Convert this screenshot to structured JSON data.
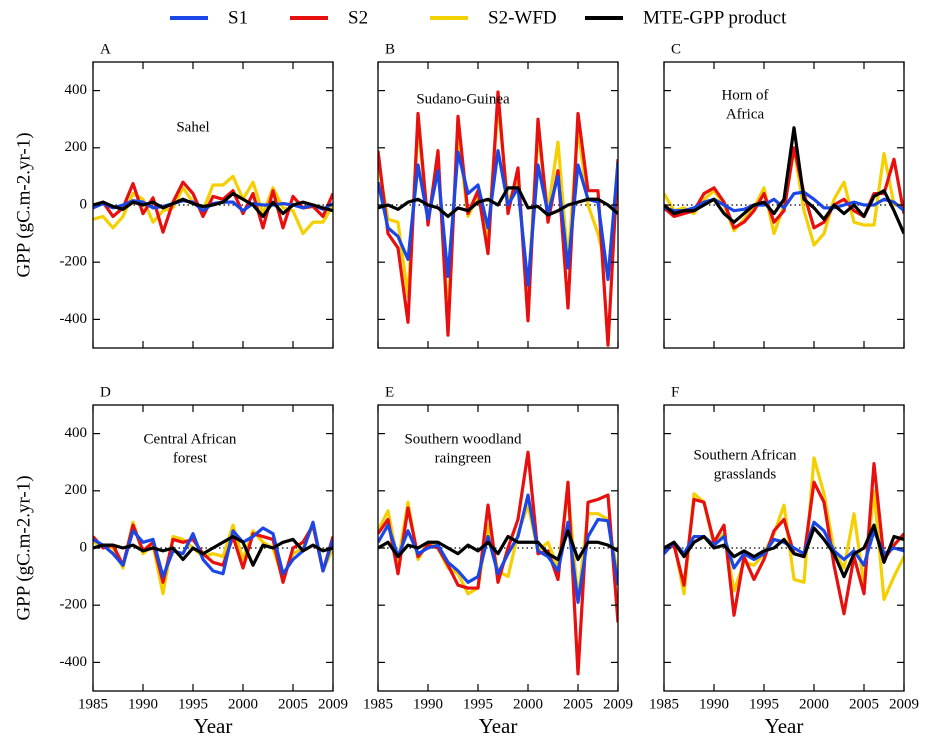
{
  "chart_data": [
    {
      "type": "line",
      "label": "A",
      "annotation": [
        "Sahel"
      ],
      "ylabel": "GPP (gC.m-2.yr-1)",
      "x": [
        1985,
        1986,
        1987,
        1988,
        1989,
        1990,
        1991,
        1992,
        1993,
        1994,
        1995,
        1996,
        1997,
        1998,
        1999,
        2000,
        2001,
        2002,
        2003,
        2004,
        2005,
        2006,
        2007,
        2008,
        2009
      ],
      "xlim": [
        1985,
        2009
      ],
      "xticks": [
        1985,
        1990,
        1995,
        2000,
        2005,
        2009
      ],
      "ylim": [
        -500,
        500
      ],
      "yticks": [
        -400,
        -200,
        0,
        200,
        400
      ],
      "hline": 0,
      "series": [
        {
          "name": "S1",
          "color": "#1a47e6",
          "values": [
            -10,
            5,
            -10,
            0,
            15,
            10,
            -10,
            -5,
            5,
            15,
            10,
            -20,
            5,
            10,
            10,
            -20,
            5,
            0,
            0,
            5,
            0,
            -10,
            0,
            -15,
            5
          ]
        },
        {
          "name": "S2",
          "color": "#e8100f",
          "values": [
            -10,
            10,
            -40,
            -10,
            75,
            -30,
            25,
            -95,
            10,
            80,
            40,
            -40,
            30,
            20,
            50,
            -30,
            40,
            -80,
            50,
            -80,
            30,
            -10,
            -5,
            -40,
            40
          ]
        },
        {
          "name": "S2-WFD",
          "color": "#f5d000",
          "values": [
            -50,
            -40,
            -80,
            -40,
            40,
            20,
            -60,
            -20,
            -10,
            60,
            10,
            -20,
            70,
            70,
            100,
            20,
            80,
            -30,
            60,
            -10,
            -20,
            -100,
            -60,
            -60,
            0
          ]
        },
        {
          "name": "MTE-GPP product",
          "color": "#000000",
          "values": [
            0,
            10,
            -5,
            -15,
            10,
            0,
            10,
            -10,
            5,
            20,
            5,
            -5,
            0,
            10,
            40,
            20,
            0,
            -40,
            10,
            -30,
            0,
            10,
            0,
            -10,
            -20
          ]
        }
      ]
    },
    {
      "type": "line",
      "label": "B",
      "annotation": [
        "Sudano-Guinea"
      ],
      "x": [
        1985,
        1986,
        1987,
        1988,
        1989,
        1990,
        1991,
        1992,
        1993,
        1994,
        1995,
        1996,
        1997,
        1998,
        1999,
        2000,
        2001,
        2002,
        2003,
        2004,
        2005,
        2006,
        2007,
        2008,
        2009
      ],
      "xlim": [
        1985,
        2009
      ],
      "xticks": [
        1985,
        1990,
        1995,
        2000,
        2005,
        2009
      ],
      "ylim": [
        -500,
        500
      ],
      "yticks": [
        -400,
        -200,
        0,
        200,
        400
      ],
      "hline": 0,
      "series": [
        {
          "name": "S1",
          "color": "#1a47e6",
          "values": [
            80,
            -80,
            -110,
            -190,
            140,
            -50,
            120,
            -250,
            185,
            40,
            70,
            -80,
            190,
            0,
            60,
            -280,
            140,
            -30,
            100,
            -220,
            140,
            20,
            10,
            -260,
            150
          ]
        },
        {
          "name": "S2",
          "color": "#e8100f",
          "values": [
            190,
            -100,
            -150,
            -410,
            320,
            -70,
            190,
            -455,
            310,
            -30,
            50,
            -170,
            395,
            -30,
            130,
            -405,
            300,
            -60,
            120,
            -360,
            320,
            50,
            50,
            -490,
            160
          ]
        },
        {
          "name": "S2-WFD",
          "color": "#f5d000",
          "values": [
            150,
            -50,
            -60,
            -320,
            280,
            -60,
            150,
            -390,
            250,
            -40,
            30,
            -110,
            350,
            10,
            80,
            -300,
            250,
            -20,
            220,
            -200,
            270,
            0,
            -100,
            -250,
            150
          ]
        },
        {
          "name": "MTE-GPP product",
          "color": "#000000",
          "values": [
            -10,
            0,
            -15,
            10,
            20,
            0,
            -10,
            -40,
            -10,
            -20,
            10,
            20,
            0,
            60,
            60,
            -10,
            -5,
            -35,
            -20,
            0,
            10,
            20,
            20,
            0,
            -30
          ]
        }
      ]
    },
    {
      "type": "line",
      "label": "C",
      "annotation": [
        "Horn of",
        "Africa"
      ],
      "x": [
        1985,
        1986,
        1987,
        1988,
        1989,
        1990,
        1991,
        1992,
        1993,
        1994,
        1995,
        1996,
        1997,
        1998,
        1999,
        2000,
        2001,
        2002,
        2003,
        2004,
        2005,
        2006,
        2007,
        2008,
        2009
      ],
      "xlim": [
        1985,
        2009
      ],
      "xticks": [
        1985,
        1990,
        1995,
        2000,
        2005,
        2009
      ],
      "ylim": [
        -500,
        500
      ],
      "yticks": [
        -400,
        -200,
        0,
        200,
        400
      ],
      "hline": 0,
      "series": [
        {
          "name": "S1",
          "color": "#1a47e6",
          "values": [
            -10,
            -20,
            -20,
            -10,
            10,
            20,
            0,
            -20,
            -15,
            0,
            0,
            20,
            -10,
            40,
            45,
            20,
            -10,
            -10,
            0,
            10,
            0,
            0,
            20,
            10,
            -20
          ]
        },
        {
          "name": "S2",
          "color": "#e8100f",
          "values": [
            -10,
            -40,
            -30,
            -20,
            40,
            60,
            10,
            -80,
            -60,
            -20,
            40,
            -60,
            -20,
            200,
            40,
            -80,
            -60,
            0,
            20,
            -20,
            -40,
            40,
            40,
            160,
            -30
          ]
        },
        {
          "name": "S2-WFD",
          "color": "#f5d000",
          "values": [
            40,
            -20,
            -10,
            -30,
            20,
            50,
            0,
            -90,
            -50,
            -10,
            60,
            -100,
            0,
            200,
            -20,
            -140,
            -100,
            20,
            80,
            -60,
            -70,
            -70,
            180,
            0,
            0
          ]
        },
        {
          "name": "MTE-GPP product",
          "color": "#000000",
          "values": [
            0,
            -30,
            -20,
            -20,
            0,
            20,
            -30,
            -60,
            -30,
            0,
            10,
            -30,
            20,
            270,
            20,
            -10,
            -50,
            0,
            -30,
            0,
            -40,
            30,
            50,
            -20,
            -100
          ]
        }
      ]
    },
    {
      "type": "line",
      "label": "D",
      "annotation": [
        "Central African",
        "forest"
      ],
      "ylabel": "GPP (gC.m-2.yr-1)",
      "xlabel": "Year",
      "x": [
        1985,
        1986,
        1987,
        1988,
        1989,
        1990,
        1991,
        1992,
        1993,
        1994,
        1995,
        1996,
        1997,
        1998,
        1999,
        2000,
        2001,
        2002,
        2003,
        2004,
        2005,
        2006,
        2007,
        2008,
        2009
      ],
      "xlim": [
        1985,
        2009
      ],
      "xticks": [
        1985,
        1990,
        1995,
        2000,
        2005,
        2009
      ],
      "ylim": [
        -500,
        500
      ],
      "yticks": [
        -400,
        -200,
        0,
        200,
        400
      ],
      "hline": 0,
      "series": [
        {
          "name": "S1",
          "color": "#1a47e6",
          "values": [
            30,
            10,
            -20,
            -60,
            60,
            20,
            30,
            -100,
            -10,
            -20,
            50,
            -40,
            -80,
            -90,
            60,
            20,
            40,
            70,
            50,
            -90,
            -40,
            -10,
            90,
            -80,
            30
          ]
        },
        {
          "name": "S2",
          "color": "#e8100f",
          "values": [
            40,
            0,
            10,
            -60,
            80,
            -10,
            20,
            -120,
            30,
            20,
            30,
            -20,
            -50,
            -60,
            40,
            -70,
            50,
            40,
            30,
            -120,
            0,
            20,
            80,
            -80,
            40
          ]
        },
        {
          "name": "S2-WFD",
          "color": "#f5d000",
          "values": [
            20,
            10,
            0,
            -70,
            90,
            -20,
            10,
            -160,
            40,
            30,
            0,
            -30,
            -20,
            -30,
            80,
            -40,
            60,
            20,
            0,
            -110,
            -20,
            0,
            80,
            -80,
            0
          ]
        },
        {
          "name": "MTE-GPP product",
          "color": "#000000",
          "values": [
            0,
            10,
            10,
            0,
            10,
            -10,
            0,
            -10,
            0,
            -40,
            0,
            -20,
            0,
            20,
            40,
            20,
            -60,
            10,
            0,
            20,
            30,
            -10,
            10,
            -10,
            0
          ]
        }
      ]
    },
    {
      "type": "line",
      "label": "E",
      "annotation": [
        "Southern woodland",
        "raingreen"
      ],
      "xlabel": "Year",
      "x": [
        1985,
        1986,
        1987,
        1988,
        1989,
        1990,
        1991,
        1992,
        1993,
        1994,
        1995,
        1996,
        1997,
        1998,
        1999,
        2000,
        2001,
        2002,
        2003,
        2004,
        2005,
        2006,
        2007,
        2008,
        2009
      ],
      "xlim": [
        1985,
        2009
      ],
      "xticks": [
        1985,
        1990,
        1995,
        2000,
        2005,
        2009
      ],
      "ylim": [
        -500,
        500
      ],
      "yticks": [
        -400,
        -200,
        0,
        200,
        400
      ],
      "hline": 0,
      "series": [
        {
          "name": "S1",
          "color": "#1a47e6",
          "values": [
            20,
            80,
            -30,
            60,
            -20,
            0,
            10,
            -50,
            -80,
            -120,
            -100,
            40,
            -90,
            -20,
            40,
            185,
            -10,
            -30,
            -80,
            90,
            -190,
            40,
            100,
            95,
            -130
          ]
        },
        {
          "name": "S2",
          "color": "#e8100f",
          "values": [
            50,
            100,
            -90,
            140,
            -30,
            10,
            0,
            -60,
            -130,
            -140,
            -140,
            150,
            -120,
            0,
            100,
            335,
            -20,
            -10,
            -110,
            230,
            -440,
            160,
            170,
            185,
            -260
          ]
        },
        {
          "name": "S2-WFD",
          "color": "#f5d000",
          "values": [
            60,
            130,
            -50,
            160,
            -40,
            20,
            0,
            -70,
            -90,
            -160,
            -140,
            80,
            -80,
            -100,
            50,
            150,
            -10,
            20,
            -70,
            200,
            -180,
            120,
            120,
            100,
            -100
          ]
        },
        {
          "name": "MTE-GPP product",
          "color": "#000000",
          "values": [
            0,
            20,
            -30,
            10,
            0,
            20,
            20,
            0,
            -20,
            10,
            -10,
            20,
            -20,
            40,
            20,
            20,
            20,
            -20,
            -40,
            60,
            -40,
            20,
            20,
            10,
            -10
          ]
        }
      ]
    },
    {
      "type": "line",
      "label": "F",
      "annotation": [
        "Southern African",
        "grasslands"
      ],
      "xlabel": "Year",
      "x": [
        1985,
        1986,
        1987,
        1988,
        1989,
        1990,
        1991,
        1992,
        1993,
        1994,
        1995,
        1996,
        1997,
        1998,
        1999,
        2000,
        2001,
        2002,
        2003,
        2004,
        2005,
        2006,
        2007,
        2008,
        2009
      ],
      "xlim": [
        1985,
        2009
      ],
      "xticks": [
        1985,
        1990,
        1995,
        2000,
        2005,
        2009
      ],
      "ylim": [
        -500,
        500
      ],
      "yticks": [
        -400,
        -200,
        0,
        200,
        400
      ],
      "hline": 0,
      "series": [
        {
          "name": "S1",
          "color": "#1a47e6",
          "values": [
            -20,
            20,
            -20,
            40,
            40,
            10,
            40,
            -70,
            -20,
            -40,
            -20,
            30,
            20,
            0,
            -20,
            90,
            60,
            -10,
            -40,
            -10,
            -60,
            60,
            -20,
            0,
            -10
          ]
        },
        {
          "name": "S2",
          "color": "#e8100f",
          "values": [
            -10,
            10,
            -130,
            170,
            160,
            20,
            80,
            -235,
            -30,
            -110,
            -40,
            60,
            100,
            -20,
            -30,
            230,
            160,
            -60,
            -230,
            -30,
            -160,
            295,
            -40,
            10,
            50
          ]
        },
        {
          "name": "S2-WFD",
          "color": "#f5d000",
          "values": [
            -20,
            20,
            -160,
            190,
            160,
            10,
            50,
            -150,
            -50,
            -60,
            -20,
            50,
            150,
            -110,
            -120,
            315,
            190,
            -10,
            -70,
            120,
            -130,
            200,
            -180,
            -100,
            -30
          ]
        },
        {
          "name": "MTE-GPP product",
          "color": "#000000",
          "values": [
            0,
            20,
            -30,
            20,
            40,
            0,
            10,
            -30,
            -10,
            -30,
            -10,
            0,
            30,
            -20,
            -30,
            70,
            30,
            -20,
            -100,
            -20,
            0,
            80,
            -50,
            40,
            30
          ]
        }
      ]
    }
  ]
}
